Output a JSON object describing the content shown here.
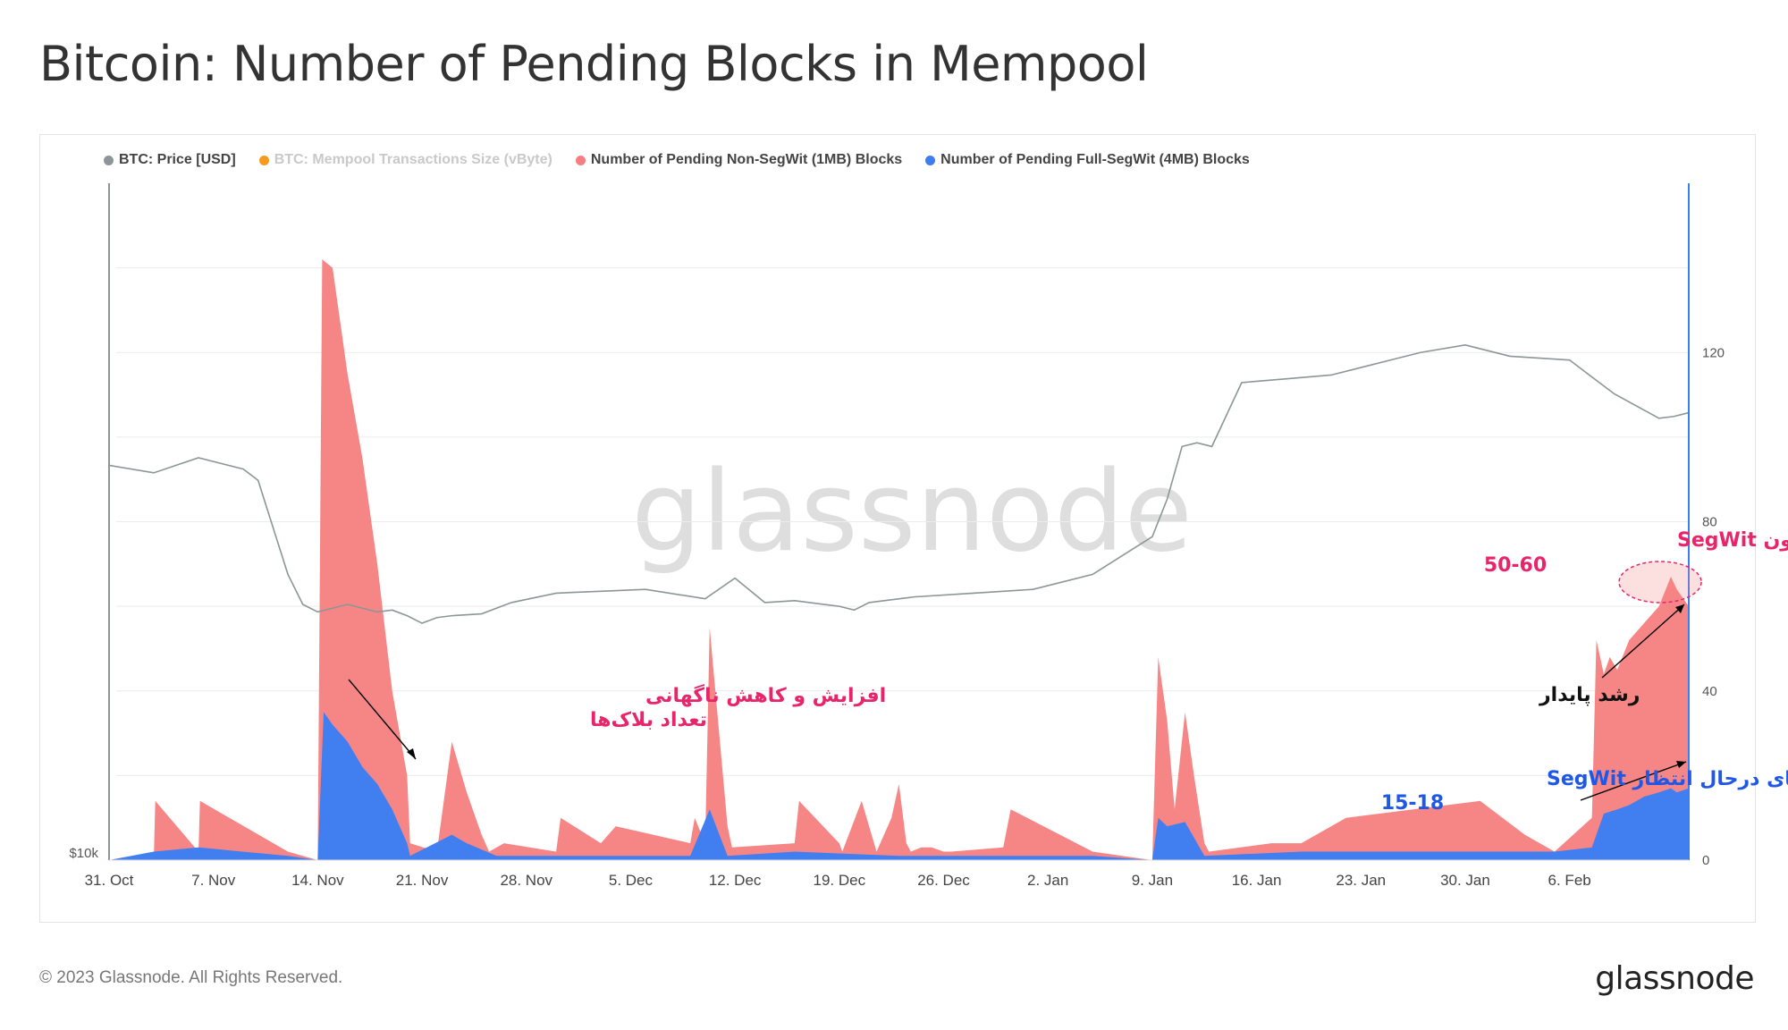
{
  "title": "Bitcoin: Number of Pending Blocks in Mempool",
  "footer": {
    "copyright": "© 2023 Glassnode. All Rights Reserved.",
    "logo": "glassnode"
  },
  "watermark": "glassnode",
  "legend": [
    {
      "label": "BTC: Price [USD]",
      "color": "#8c9696",
      "muted": false
    },
    {
      "label": "BTC: Mempool Transactions Size (vByte)",
      "color": "#f59a1f",
      "muted": true
    },
    {
      "label": "Number of Pending Non-SegWit (1MB) Blocks",
      "color": "#f57f80",
      "muted": false
    },
    {
      "label": "Number of Pending Full-SegWit (4MB) Blocks",
      "color": "#3d7df2",
      "muted": false
    }
  ],
  "annotations": {
    "spike": [
      "افزایش و کاهش ناگهانی",
      "تعداد بلاک‌ها"
    ],
    "steady": "رشد پایدار",
    "nonsegwit": [
      "بلاک‌های در حال انتظار بدون SegWit",
      "50-60"
    ],
    "segwit": [
      "بلاک‌های درحال انتظار SegWit",
      "15-18"
    ]
  },
  "chart_data": {
    "type": "area",
    "x_ticks": [
      "31. Oct",
      "7. Nov",
      "14. Nov",
      "21. Nov",
      "28. Nov",
      "5. Dec",
      "12. Dec",
      "19. Dec",
      "26. Dec",
      "2. Jan",
      "9. Jan",
      "16. Jan",
      "23. Jan",
      "30. Jan",
      "6. Feb"
    ],
    "y_right_ticks": [
      0,
      40,
      80,
      120
    ],
    "y_right_range": [
      0,
      160
    ],
    "y_left_label": "$10k",
    "x_range_days": [
      0,
      106
    ],
    "price_range_usd": [
      10000,
      28000
    ],
    "series": [
      {
        "name": "BTC: Price [USD]",
        "color": "#8c9696",
        "x_days": [
          0,
          3,
          6,
          9,
          10,
          12,
          13,
          14,
          16,
          18,
          19,
          20,
          21,
          22,
          23,
          25,
          27,
          30,
          33,
          36,
          40,
          42,
          44,
          46,
          48,
          49,
          50,
          51,
          54,
          58,
          62,
          66,
          70,
          71,
          72,
          73,
          74,
          76,
          79,
          82,
          84,
          86,
          88,
          91,
          94,
          98,
          101,
          104,
          105,
          106
        ],
        "values": [
          20500,
          20300,
          20700,
          20400,
          20100,
          17600,
          16800,
          16600,
          16800,
          16600,
          16650,
          16500,
          16300,
          16450,
          16500,
          16550,
          16850,
          17100,
          17150,
          17200,
          16950,
          17500,
          16850,
          16900,
          16800,
          16750,
          16650,
          16850,
          17000,
          17100,
          17200,
          17600,
          18600,
          19600,
          21000,
          21100,
          21000,
          22700,
          22800,
          22900,
          23100,
          23300,
          23500,
          23700,
          23400,
          23300,
          22400,
          21750,
          21800,
          21900
        ]
      },
      {
        "name": "Number of Pending Non-SegWit (1MB) Blocks",
        "color": "#f57f80",
        "x_days": [
          0,
          3,
          3.1,
          6,
          6.1,
          12,
          14.0,
          14.3,
          15.0,
          16.0,
          17.0,
          18.0,
          19.0,
          20.0,
          20.2,
          22.0,
          23.0,
          24.0,
          25.0,
          25.5,
          26.5,
          30,
          30.3,
          33,
          34,
          39,
          39.3,
          40,
          40.3,
          41.5,
          41.8,
          46,
          46.3,
          49,
          49.2,
          50.5,
          51.5,
          52.5,
          53,
          53.5,
          53.8,
          54.5,
          55.2,
          56,
          56.5,
          60,
          60.5,
          66,
          70.0,
          70.4,
          71.0,
          71.5,
          72.2,
          72.8,
          73.5,
          73.8,
          78,
          80,
          83,
          92,
          95,
          97,
          99.5,
          99.8,
          100.3,
          100.7,
          101.2,
          102,
          103,
          104,
          104.8,
          105.2,
          106
        ],
        "values": [
          0,
          0,
          14,
          2,
          14,
          2,
          0,
          142,
          140,
          115,
          95,
          70,
          40,
          20,
          4,
          2,
          28,
          16,
          6,
          2,
          4,
          2,
          10,
          4,
          8,
          4,
          10,
          4,
          55,
          8,
          3,
          4,
          14,
          4,
          2,
          14,
          2,
          10,
          18,
          4,
          2,
          3,
          3,
          2,
          2,
          3,
          12,
          2,
          0,
          48,
          33,
          12,
          35,
          20,
          4,
          2,
          4,
          4,
          10,
          14,
          6,
          2,
          10,
          52,
          44,
          48,
          45,
          52,
          56,
          60,
          67,
          64,
          60
        ]
      },
      {
        "name": "Number of Pending Full-SegWit (4MB) Blocks",
        "color": "#3d7df2",
        "x_days": [
          0,
          3,
          6,
          12,
          14.0,
          14.4,
          15.0,
          16.0,
          17.0,
          18.0,
          19.0,
          20.0,
          20.2,
          23.0,
          24.0,
          26.0,
          30,
          39,
          40.3,
          41.5,
          46,
          53,
          56,
          66,
          70.0,
          70.4,
          71.0,
          72.2,
          73.5,
          80,
          92,
          95,
          97,
          99.5,
          100.3,
          101.2,
          102,
          103,
          104,
          104.8,
          105.2,
          106
        ],
        "values": [
          0,
          2,
          3,
          1,
          0,
          35,
          32,
          28,
          22,
          18,
          12,
          4,
          1,
          6,
          4,
          1,
          1,
          1,
          12,
          1,
          2,
          1,
          1,
          1,
          0,
          10,
          8,
          9,
          1,
          2,
          2,
          2,
          2,
          3,
          11,
          12,
          13,
          15,
          16,
          17,
          16,
          17
        ]
      }
    ]
  }
}
